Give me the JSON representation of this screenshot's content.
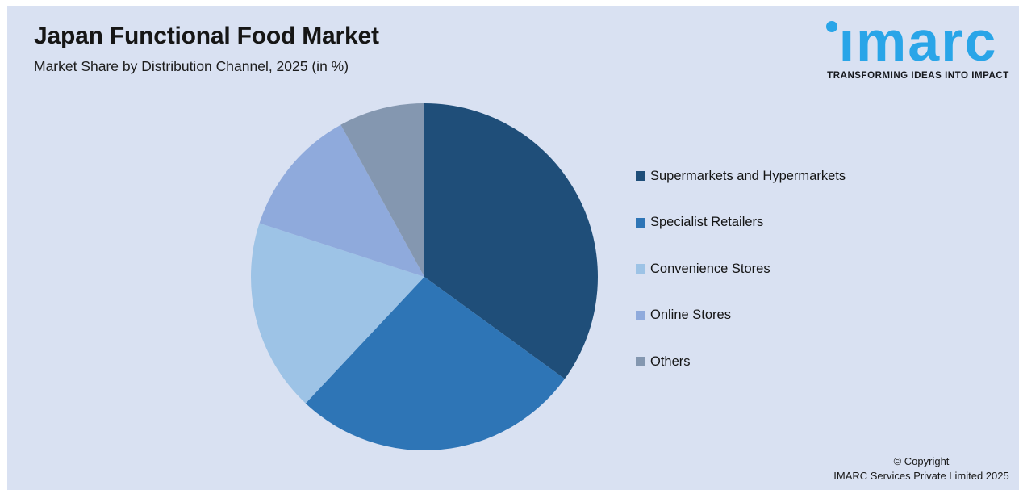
{
  "page": {
    "panel_background": "#D9E1F2",
    "page_border_color": "#FFFFFF"
  },
  "header": {
    "title": "Japan Functional Food Market",
    "subtitle": "Market Share by Distribution Channel, 2025 (in %)"
  },
  "logo": {
    "brand": "imarc",
    "tagline": "TRANSFORMING IDEAS INTO IMPACT",
    "brand_color": "#29A5E8"
  },
  "footer": {
    "copyright_line1": "© Copyright",
    "copyright_line2": "IMARC Services Private Limited 2025"
  },
  "chart_data": {
    "type": "pie",
    "title": "Japan Functional Food Market",
    "subtitle": "Market Share by Distribution Channel, 2025 (in %)",
    "unit": "%",
    "start_angle_deg": 0,
    "direction": "clockwise",
    "legend_position": "right",
    "grid": false,
    "data_labels_visible": false,
    "labels": [
      "Supermarkets and Hypermarkets",
      "Specialist Retailers",
      "Convenience Stores",
      "Online Stores",
      "Others"
    ],
    "values": [
      35,
      27,
      18,
      12,
      8
    ],
    "colors": [
      "#1F4E79",
      "#2E75B6",
      "#9DC3E6",
      "#8FAADC",
      "#8497B0"
    ]
  }
}
